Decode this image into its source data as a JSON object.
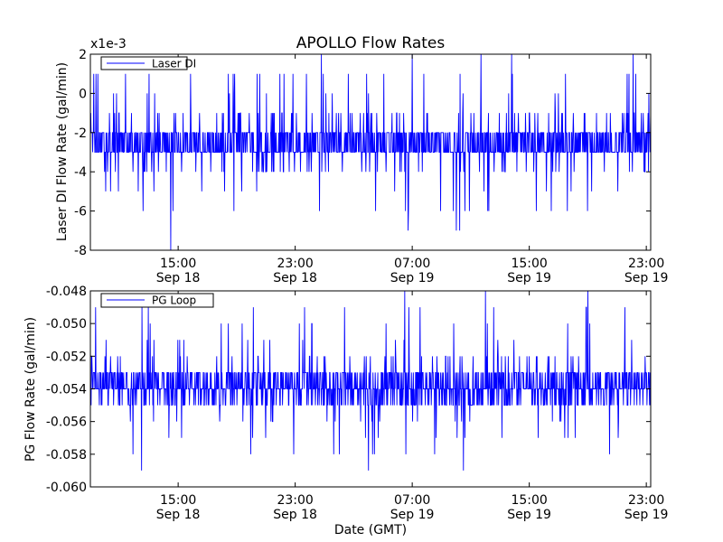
{
  "figure": {
    "title": "APOLLO Flow Rates",
    "xlabel": "Date (GMT)"
  },
  "x_ticks": [
    {
      "time": "15:00",
      "date": "Sep 18",
      "hours": 6.0
    },
    {
      "time": "23:00",
      "date": "Sep 18",
      "hours": 14.0
    },
    {
      "time": "07:00",
      "date": "Sep 19",
      "hours": 22.0
    },
    {
      "time": "15:00",
      "date": "Sep 19",
      "hours": 30.0
    },
    {
      "time": "23:00",
      "date": "Sep 19",
      "hours": 38.0
    }
  ],
  "chart_data": [
    {
      "type": "line",
      "title": "APOLLO Flow Rates",
      "xlabel": "",
      "ylabel": "Laser DI Flow Rate (gal/min)",
      "y_scale_label": "x1e-3",
      "ylim": [
        -8,
        2
      ],
      "y_ticks": [
        "2",
        "0",
        "-2",
        "-4",
        "-6",
        "-8"
      ],
      "y_tick_values": [
        2,
        0,
        -2,
        -4,
        -6,
        -8
      ],
      "xlim_hours": [
        0,
        38.3
      ],
      "grid": false,
      "legend": "top-left",
      "series": [
        {
          "name": "Laser DI",
          "color": "#0000ff",
          "description": "dense noisy signal, mostly between -4 and -1 (x1e-3), mean about -2.6, spikes to +2 and a minimum near -8 around 15:00 Sep 18",
          "typical_range": [
            -4,
            -1
          ],
          "mean": -2.6,
          "observed_min": -8,
          "observed_max": 2,
          "extremes": [
            {
              "hours": 5.5,
              "value": -8
            },
            {
              "hours": 3.6,
              "value": -6
            },
            {
              "hours": 15.8,
              "value": 2
            },
            {
              "hours": 22.0,
              "value": 2
            },
            {
              "hours": 26.7,
              "value": 2
            },
            {
              "hours": 28.8,
              "value": 2
            },
            {
              "hours": 31.5,
              "value": -6
            },
            {
              "hours": 37.1,
              "value": 2
            }
          ]
        }
      ]
    },
    {
      "type": "line",
      "title": "",
      "xlabel": "Date (GMT)",
      "ylabel": "PG Flow Rate (gal/min)",
      "ylim": [
        -0.06,
        -0.048
      ],
      "y_ticks": [
        "-0.048",
        "-0.050",
        "-0.052",
        "-0.054",
        "-0.056",
        "-0.058",
        "-0.060"
      ],
      "y_tick_values": [
        -0.048,
        -0.05,
        -0.052,
        -0.054,
        -0.056,
        -0.058,
        -0.06
      ],
      "xlim_hours": [
        0,
        38.3
      ],
      "grid": false,
      "legend": "top-left",
      "series": [
        {
          "name": "PG Loop",
          "color": "#0000ff",
          "description": "dense noisy signal centred near -0.054, mostly between -0.055 and -0.052, spikes up to -0.048 and down to -0.059",
          "typical_range": [
            -0.0555,
            -0.052
          ],
          "mean": -0.0538,
          "observed_min": -0.059,
          "observed_max": -0.048,
          "extremes": [
            {
              "hours": 3.5,
              "value": -0.059
            },
            {
              "hours": 19.0,
              "value": -0.059
            },
            {
              "hours": 25.5,
              "value": -0.059
            },
            {
              "hours": 21.5,
              "value": -0.048
            },
            {
              "hours": 27.0,
              "value": -0.048
            },
            {
              "hours": 34.0,
              "value": -0.048
            }
          ]
        }
      ]
    }
  ]
}
